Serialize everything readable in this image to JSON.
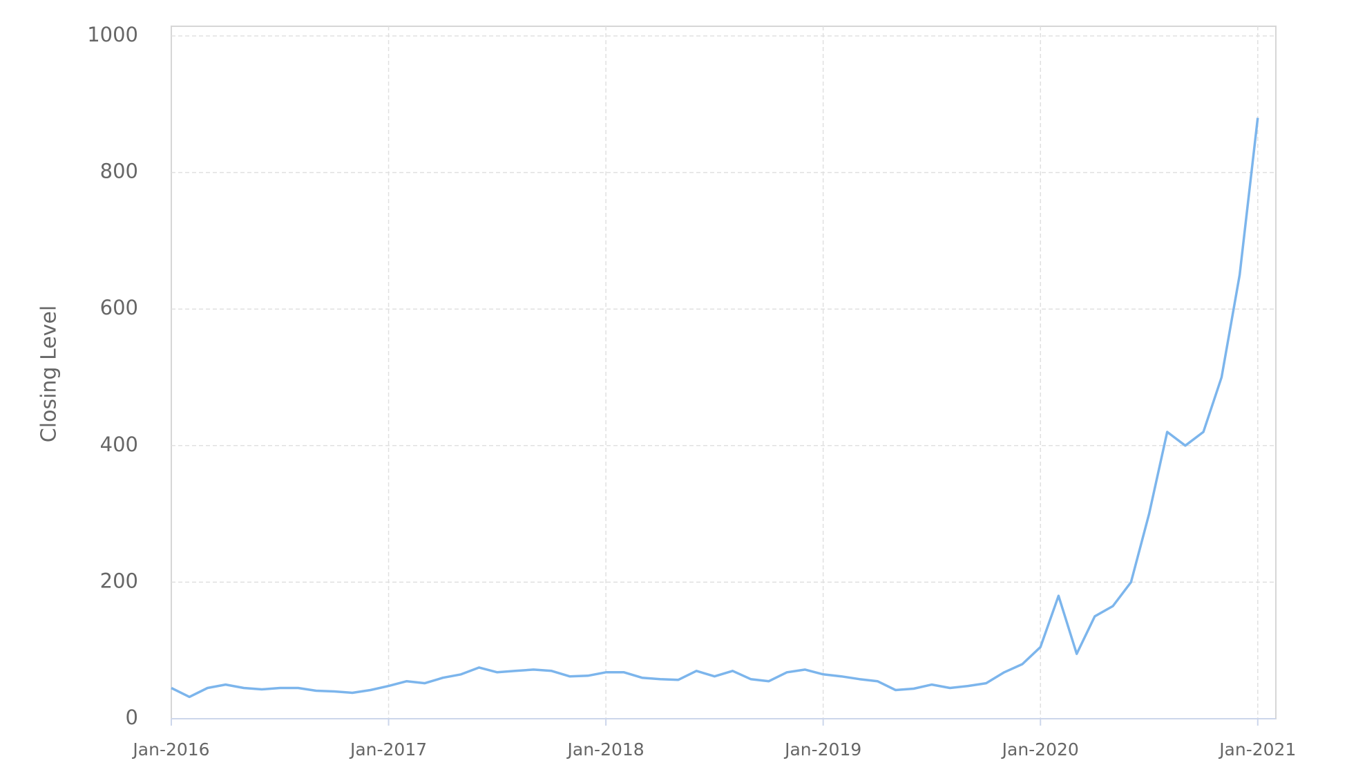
{
  "chart_data": {
    "type": "line",
    "y_label": "Closing Level",
    "x": [
      "2016-01",
      "2016-02",
      "2016-03",
      "2016-04",
      "2016-05",
      "2016-06",
      "2016-07",
      "2016-08",
      "2016-09",
      "2016-10",
      "2016-11",
      "2016-12",
      "2017-01",
      "2017-02",
      "2017-03",
      "2017-04",
      "2017-05",
      "2017-06",
      "2017-07",
      "2017-08",
      "2017-09",
      "2017-10",
      "2017-11",
      "2017-12",
      "2018-01",
      "2018-02",
      "2018-03",
      "2018-04",
      "2018-05",
      "2018-06",
      "2018-07",
      "2018-08",
      "2018-09",
      "2018-10",
      "2018-11",
      "2018-12",
      "2019-01",
      "2019-02",
      "2019-03",
      "2019-04",
      "2019-05",
      "2019-06",
      "2019-07",
      "2019-08",
      "2019-09",
      "2019-10",
      "2019-11",
      "2019-12",
      "2020-01",
      "2020-02",
      "2020-03",
      "2020-04",
      "2020-05",
      "2020-06",
      "2020-07",
      "2020-08",
      "2020-09",
      "2020-10",
      "2020-11",
      "2020-12",
      "2021-01"
    ],
    "series": [
      {
        "name": "Closing Level",
        "color": "#7cb5ec",
        "values": [
          45,
          32,
          45,
          50,
          45,
          43,
          45,
          45,
          41,
          40,
          38,
          42,
          48,
          55,
          52,
          60,
          65,
          75,
          68,
          70,
          72,
          70,
          62,
          63,
          68,
          68,
          60,
          58,
          57,
          70,
          62,
          70,
          58,
          55,
          68,
          72,
          65,
          62,
          58,
          55,
          42,
          44,
          50,
          45,
          48,
          52,
          68,
          80,
          105,
          180,
          95,
          150,
          165,
          200,
          300,
          420,
          400,
          420,
          500,
          650,
          880
        ]
      }
    ],
    "xlim": [
      "2016-01",
      "2021-02"
    ],
    "xticks": [
      {
        "value": "2016-01",
        "label": "Jan-2016"
      },
      {
        "value": "2017-01",
        "label": "Jan-2017"
      },
      {
        "value": "2018-01",
        "label": "Jan-2018"
      },
      {
        "value": "2019-01",
        "label": "Jan-2019"
      },
      {
        "value": "2020-01",
        "label": "Jan-2020"
      },
      {
        "value": "2021-01",
        "label": "Jan-2021"
      }
    ],
    "ylim": [
      0,
      1000
    ],
    "yticks": [
      0,
      200,
      400,
      600,
      800,
      1000
    ],
    "grid": true
  }
}
